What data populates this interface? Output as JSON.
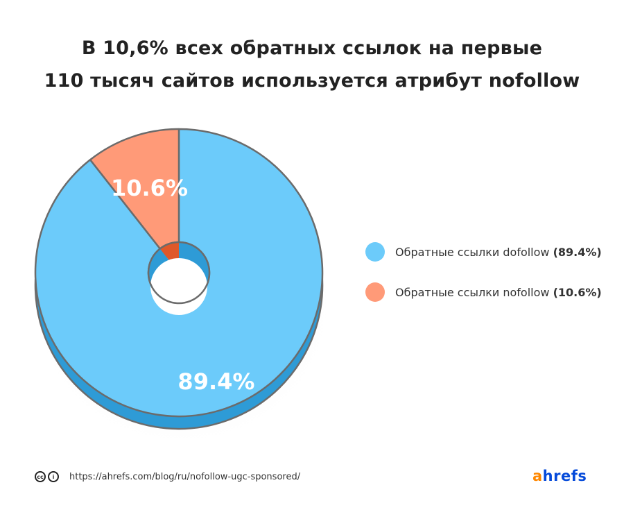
{
  "chart_data": {
    "type": "pie",
    "title_line1": "В 10,6% всех обратных ссылок на первые",
    "title_line2": "110 тысяч сайтов используется атрибут nofollow",
    "slices": [
      {
        "label": "Обратные ссылки dofollow",
        "value": 89.4,
        "display": "89.4%",
        "legend_value": "(89.4%)",
        "color": "#6ccbfa",
        "side_color": "#2e9bd6"
      },
      {
        "label": "Обратные ссылки nofollow",
        "value": 10.6,
        "display": "10.6%",
        "legend_value": "(10.6%)",
        "color": "#ff9a78",
        "side_color": "#e0582a"
      }
    ],
    "legend_placement": "right"
  },
  "footer": {
    "cc_icon": "cc-icon",
    "attribution_icon": "attribution-icon",
    "url": "https://ahrefs.com/blog/ru/nofollow-ugc-sponsored/",
    "logo_a": "a",
    "logo_rest": "hrefs"
  }
}
